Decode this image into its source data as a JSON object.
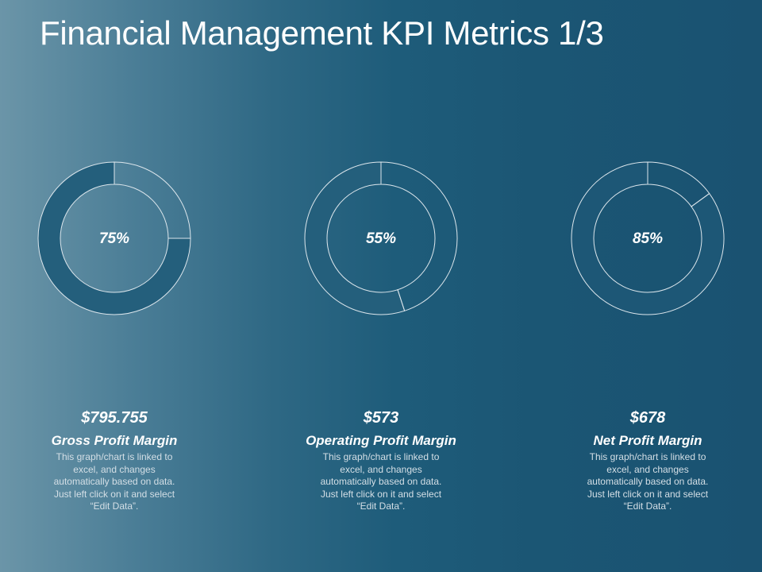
{
  "title": "Financial Management KPI Metrics 1/3",
  "chart_data": [
    {
      "type": "pie",
      "variant": "donut",
      "title": "",
      "percent_label": "75%",
      "values": [
        75,
        25
      ],
      "start": "top",
      "direction": "counterclockwise",
      "filled_color": "#245f7c",
      "remainder_color": "transparent",
      "outline_color": "#dce6ec"
    },
    {
      "type": "pie",
      "variant": "donut",
      "title": "",
      "percent_label": "55%",
      "values": [
        55,
        45
      ],
      "start": "top",
      "direction": "counterclockwise",
      "filled_color": "#245f7c",
      "remainder_color": "transparent",
      "outline_color": "#dce6ec"
    },
    {
      "type": "pie",
      "variant": "donut",
      "title": "",
      "percent_label": "85%",
      "values": [
        85,
        15
      ],
      "start": "top",
      "direction": "counterclockwise",
      "filled_color": "#1d5776",
      "remainder_color": "transparent",
      "outline_color": "#dce6ec"
    }
  ],
  "kpis": [
    {
      "value": "$795.755",
      "name": "Gross Profit Margin",
      "description": "This graph/chart is linked to excel, and changes automatically based on data. Just left click on it and select “Edit Data”."
    },
    {
      "value": "$573",
      "name": "Operating Profit Margin",
      "description": "This graph/chart is linked to excel, and changes automatically based on data. Just left click on it and select “Edit Data”."
    },
    {
      "value": "$678",
      "name": "Net Profit Margin",
      "description": "This graph/chart is linked to excel, and changes automatically based on data. Just left click on it and select “Edit Data”."
    }
  ]
}
